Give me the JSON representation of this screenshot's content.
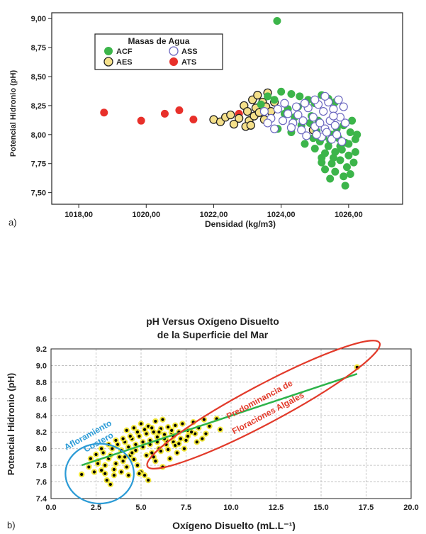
{
  "panels": {
    "a_label": "a)",
    "b_label": "b)"
  },
  "chart_data": [
    {
      "type": "scatter",
      "panel": "a",
      "title": "",
      "xlabel": "Densidad (kg/m3)",
      "ylabel": "Potencial Hidronio (pH)",
      "xlim": [
        1017.2,
        1027.6
      ],
      "ylim": [
        7.4,
        9.05
      ],
      "xticks": [
        1018,
        1020,
        1022,
        1024,
        1026
      ],
      "xtick_labels": [
        "1018,00",
        "1020,00",
        "1022,00",
        "1024,00",
        "1026,00"
      ],
      "yticks": [
        7.5,
        7.75,
        8.0,
        8.25,
        8.5,
        8.75,
        9.0
      ],
      "ytick_labels": [
        "7,50",
        "7,75",
        "8,00",
        "8,25",
        "8,50",
        "8,75",
        "9,00"
      ],
      "grid": false,
      "legend": {
        "title": "Masas de Agua",
        "position": "top-left",
        "entries": [
          "ACF",
          "ASS",
          "AES",
          "ATS"
        ]
      },
      "series": [
        {
          "name": "ATS",
          "color": "#e8302a",
          "marker": "filled",
          "points": [
            [
              1018.75,
              8.19
            ],
            [
              1019.85,
              8.12
            ],
            [
              1020.55,
              8.18
            ],
            [
              1020.98,
              8.21
            ],
            [
              1021.4,
              8.13
            ],
            [
              1022.75,
              8.18
            ]
          ]
        },
        {
          "name": "AES",
          "color": "#f5e08a",
          "marker": "outlined",
          "points": [
            [
              1022.0,
              8.13
            ],
            [
              1022.2,
              8.11
            ],
            [
              1022.35,
              8.15
            ],
            [
              1022.5,
              8.17
            ],
            [
              1022.6,
              8.09
            ],
            [
              1022.75,
              8.14
            ],
            [
              1022.9,
              8.25
            ],
            [
              1023.0,
              8.2
            ],
            [
              1023.05,
              8.12
            ],
            [
              1023.15,
              8.3
            ],
            [
              1023.2,
              8.16
            ],
            [
              1023.25,
              8.23
            ],
            [
              1023.3,
              8.34
            ],
            [
              1023.35,
              8.19
            ],
            [
              1023.45,
              8.28
            ],
            [
              1023.5,
              8.13
            ],
            [
              1023.55,
              8.24
            ],
            [
              1023.6,
              8.36
            ],
            [
              1023.7,
              8.2
            ],
            [
              1023.8,
              8.28
            ],
            [
              1022.95,
              8.07
            ],
            [
              1023.1,
              8.08
            ],
            [
              1024.95,
              8.04
            ]
          ]
        },
        {
          "name": "ACF",
          "color": "#3cb54a",
          "marker": "filled",
          "points": [
            [
              1023.88,
              8.98
            ],
            [
              1023.4,
              8.26
            ],
            [
              1023.6,
              8.33
            ],
            [
              1023.8,
              8.3
            ],
            [
              1024.0,
              8.37
            ],
            [
              1024.3,
              8.35
            ],
            [
              1024.55,
              8.33
            ],
            [
              1024.8,
              8.3
            ],
            [
              1025.0,
              8.27
            ],
            [
              1025.2,
              8.34
            ],
            [
              1025.4,
              8.31
            ],
            [
              1025.6,
              8.28
            ],
            [
              1024.2,
              8.22
            ],
            [
              1024.5,
              8.24
            ],
            [
              1024.9,
              8.16
            ],
            [
              1025.1,
              8.12
            ],
            [
              1025.3,
              8.05
            ],
            [
              1025.5,
              8.0
            ],
            [
              1025.7,
              7.97
            ],
            [
              1025.9,
              7.93
            ],
            [
              1026.05,
              8.02
            ],
            [
              1026.2,
              7.96
            ],
            [
              1025.4,
              7.9
            ],
            [
              1025.6,
              7.85
            ],
            [
              1025.8,
              7.87
            ],
            [
              1026.0,
              7.82
            ],
            [
              1026.2,
              7.85
            ],
            [
              1025.2,
              7.8
            ],
            [
              1025.5,
              7.75
            ],
            [
              1025.75,
              7.78
            ],
            [
              1025.95,
              7.72
            ],
            [
              1026.15,
              7.76
            ],
            [
              1025.3,
              7.7
            ],
            [
              1025.6,
              7.68
            ],
            [
              1025.85,
              7.64
            ],
            [
              1026.05,
              7.66
            ],
            [
              1025.45,
              7.62
            ],
            [
              1025.9,
              7.56
            ],
            [
              1024.7,
              7.92
            ],
            [
              1024.95,
              7.97
            ],
            [
              1025.15,
              7.94
            ],
            [
              1024.6,
              8.08
            ],
            [
              1024.85,
              8.1
            ],
            [
              1025.05,
              8.03
            ],
            [
              1025.25,
              7.98
            ],
            [
              1025.45,
              7.95
            ],
            [
              1025.65,
              8.05
            ],
            [
              1025.85,
              8.08
            ],
            [
              1026.1,
              8.12
            ],
            [
              1026.25,
              8.0
            ],
            [
              1025.0,
              7.88
            ],
            [
              1025.3,
              7.84
            ],
            [
              1025.55,
              7.8
            ],
            [
              1025.75,
              7.9
            ],
            [
              1026.0,
              7.92
            ],
            [
              1025.2,
              7.76
            ],
            [
              1024.4,
              8.15
            ],
            [
              1024.1,
              8.18
            ],
            [
              1023.9,
              8.05
            ],
            [
              1024.3,
              8.02
            ]
          ]
        },
        {
          "name": "ASS",
          "color": "#9a96d8",
          "marker": "outlined",
          "points": [
            [
              1023.5,
              8.2
            ],
            [
              1023.7,
              8.14
            ],
            [
              1023.9,
              8.22
            ],
            [
              1024.05,
              8.12
            ],
            [
              1024.2,
              8.18
            ],
            [
              1024.35,
              8.1
            ],
            [
              1024.5,
              8.17
            ],
            [
              1024.65,
              8.12
            ],
            [
              1024.8,
              8.23
            ],
            [
              1024.95,
              8.15
            ],
            [
              1025.1,
              8.26
            ],
            [
              1025.25,
              8.2
            ],
            [
              1025.4,
              8.28
            ],
            [
              1025.55,
              8.22
            ],
            [
              1025.7,
              8.3
            ],
            [
              1025.85,
              8.24
            ],
            [
              1025.0,
              8.07
            ],
            [
              1025.15,
              8.1
            ],
            [
              1025.3,
              8.05
            ],
            [
              1025.45,
              8.12
            ],
            [
              1025.6,
              8.08
            ],
            [
              1025.75,
              8.15
            ],
            [
              1025.9,
              8.1
            ],
            [
              1025.2,
              7.98
            ],
            [
              1025.35,
              8.02
            ],
            [
              1025.5,
              7.96
            ],
            [
              1025.65,
              8.0
            ],
            [
              1025.8,
              7.94
            ],
            [
              1024.6,
              8.04
            ],
            [
              1024.75,
              7.99
            ],
            [
              1025.05,
              8.0
            ],
            [
              1024.3,
              8.06
            ],
            [
              1024.45,
              8.24
            ],
            [
              1024.7,
              8.27
            ],
            [
              1025.0,
              8.3
            ],
            [
              1025.3,
              8.33
            ],
            [
              1025.55,
              8.16
            ],
            [
              1023.6,
              8.1
            ],
            [
              1023.8,
              8.05
            ],
            [
              1024.1,
              8.27
            ]
          ]
        }
      ]
    },
    {
      "type": "scatter",
      "panel": "b",
      "title": "pH Versus Oxígeno Disuelto",
      "subtitle": "de la Superficie del Mar",
      "xlabel": "Oxígeno Disuelto (mL.L⁻¹)",
      "ylabel": "Potencial Hidronio (pH)",
      "xlim": [
        0,
        20
      ],
      "ylim": [
        7.4,
        9.2
      ],
      "xticks": [
        0,
        2.5,
        5,
        7.5,
        10,
        12.5,
        15,
        17.5,
        20
      ],
      "xtick_labels": [
        "0.0",
        "2.5",
        "5.0",
        "7.5",
        "10.0",
        "12.5",
        "15.0",
        "17.5",
        "20.0"
      ],
      "yticks": [
        7.4,
        7.6,
        7.8,
        8.0,
        8.2,
        8.4,
        8.6,
        8.8,
        9.0,
        9.2
      ],
      "ytick_labels": [
        "7.4",
        "7.6",
        "7.8",
        "8.0",
        "8.2",
        "8.4",
        "8.6",
        "8.8",
        "9.0",
        "9.2"
      ],
      "grid": true,
      "trendline": {
        "color": "#2db34a",
        "x": [
          1.7,
          17.0
        ],
        "y": [
          7.8,
          8.9
        ]
      },
      "annotations": [
        {
          "text": "Afloramiento",
          "color": "#2b9bd6"
        },
        {
          "text": "Costero",
          "color": "#2b9bd6"
        },
        {
          "text": "Predominancia de",
          "color": "#e23a2a"
        },
        {
          "text": "Floraciones Algales",
          "color": "#e23a2a"
        }
      ],
      "regions": [
        {
          "shape": "circle",
          "color": "#2b9bd6",
          "cx": 2.7,
          "cy": 7.7,
          "rx": 1.9,
          "ry": 0.36
        },
        {
          "shape": "ellipse",
          "color": "#e23a2a",
          "cx": 11.8,
          "cy": 8.53,
          "rx": 7.3,
          "ry": 0.42,
          "rotate_deg": -28
        }
      ],
      "series": [
        {
          "name": "",
          "color": "#000000",
          "halo": "#f2e73a",
          "points": [
            [
              17.0,
              8.98
            ],
            [
              1.7,
              7.69
            ],
            [
              2.1,
              7.78
            ],
            [
              2.4,
              7.72
            ],
            [
              2.6,
              7.85
            ],
            [
              2.8,
              7.74
            ],
            [
              3.0,
              7.8
            ],
            [
              3.1,
              7.62
            ],
            [
              3.3,
              7.57
            ],
            [
              3.5,
              7.68
            ],
            [
              2.5,
              7.93
            ],
            [
              2.9,
              7.95
            ],
            [
              3.2,
              7.88
            ],
            [
              3.6,
              7.82
            ],
            [
              3.8,
              7.9
            ],
            [
              4.0,
              7.85
            ],
            [
              4.2,
              7.78
            ],
            [
              4.4,
              7.92
            ],
            [
              4.6,
              7.87
            ],
            [
              4.8,
              7.8
            ],
            [
              5.0,
              7.72
            ],
            [
              5.2,
              7.68
            ],
            [
              3.4,
              8.0
            ],
            [
              3.7,
              8.05
            ],
            [
              3.9,
              7.98
            ],
            [
              4.1,
              8.08
            ],
            [
              4.3,
              8.02
            ],
            [
              4.5,
              8.12
            ],
            [
              4.7,
              8.05
            ],
            [
              4.9,
              8.15
            ],
            [
              5.1,
              8.08
            ],
            [
              5.3,
              8.18
            ],
            [
              5.5,
              8.1
            ],
            [
              5.7,
              8.2
            ],
            [
              5.9,
              8.14
            ],
            [
              6.1,
              8.24
            ],
            [
              6.3,
              8.17
            ],
            [
              6.5,
              8.26
            ],
            [
              6.7,
              8.19
            ],
            [
              6.9,
              8.28
            ],
            [
              7.1,
              8.2
            ],
            [
              7.3,
              8.3
            ],
            [
              7.6,
              8.22
            ],
            [
              7.9,
              8.32
            ],
            [
              8.2,
              8.25
            ],
            [
              8.5,
              8.35
            ],
            [
              8.8,
              8.27
            ],
            [
              9.2,
              8.36
            ],
            [
              9.4,
              8.23
            ],
            [
              4.2,
              8.22
            ],
            [
              4.6,
              8.25
            ],
            [
              5.0,
              8.3
            ],
            [
              5.4,
              8.27
            ],
            [
              5.8,
              8.33
            ],
            [
              6.2,
              8.35
            ],
            [
              5.6,
              7.95
            ],
            [
              6.0,
              8.0
            ],
            [
              6.4,
              8.05
            ],
            [
              6.8,
              8.08
            ],
            [
              7.2,
              8.12
            ],
            [
              7.6,
              8.15
            ],
            [
              8.0,
              8.18
            ],
            [
              8.4,
              8.12
            ],
            [
              5.3,
              7.92
            ],
            [
              5.7,
              7.9
            ],
            [
              6.1,
              7.97
            ],
            [
              6.5,
              7.99
            ],
            [
              6.9,
              8.04
            ],
            [
              5.4,
              7.62
            ],
            [
              4.9,
              7.7
            ],
            [
              4.3,
              7.68
            ],
            [
              3.9,
              7.72
            ],
            [
              2.8,
              8.0
            ],
            [
              3.2,
              8.05
            ],
            [
              3.6,
              8.1
            ],
            [
              4.0,
              8.12
            ],
            [
              4.4,
              8.15
            ],
            [
              4.8,
              8.2
            ],
            [
              5.2,
              8.23
            ],
            [
              5.6,
              8.25
            ],
            [
              6.0,
              8.2
            ],
            [
              6.4,
              8.1
            ],
            [
              6.8,
              8.15
            ],
            [
              7.4,
              8.0
            ],
            [
              6.6,
              7.88
            ],
            [
              7.0,
              7.95
            ],
            [
              4.5,
              7.95
            ],
            [
              4.1,
              7.9
            ],
            [
              3.3,
              7.92
            ],
            [
              2.2,
              7.88
            ],
            [
              2.6,
              7.82
            ],
            [
              3.0,
              7.7
            ],
            [
              3.5,
              7.75
            ],
            [
              4.7,
              7.98
            ],
            [
              5.1,
              8.02
            ],
            [
              5.5,
              8.05
            ],
            [
              5.9,
              8.08
            ],
            [
              6.3,
              8.12
            ],
            [
              6.7,
              8.22
            ],
            [
              7.1,
              8.06
            ],
            [
              7.5,
              8.1
            ],
            [
              7.8,
              8.2
            ],
            [
              8.1,
              8.08
            ],
            [
              8.6,
              8.18
            ],
            [
              6.2,
              7.78
            ],
            [
              5.8,
              7.85
            ]
          ]
        }
      ]
    }
  ]
}
